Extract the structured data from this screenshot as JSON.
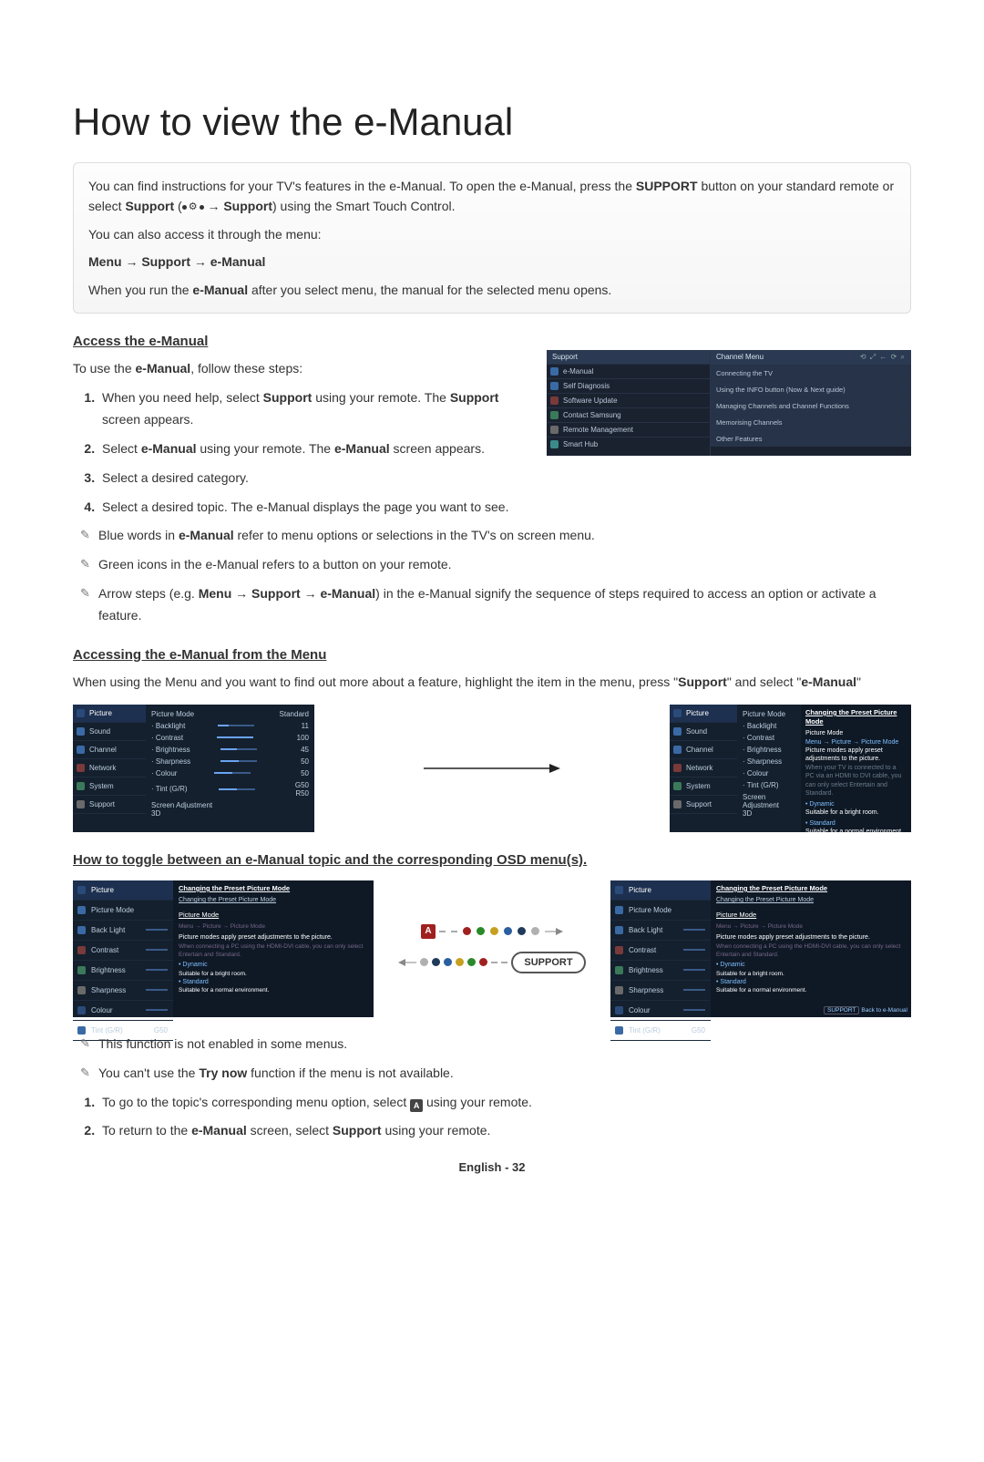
{
  "title": "How to view the e-Manual",
  "intro": {
    "p1a": "You can find instructions for your TV's features in the e-Manual. To open the e-Manual, press the ",
    "p1b": " button on your standard remote or select ",
    "p1c": " → Support",
    "p1d": ") using the Smart Touch Control.",
    "support_word": "SUPPORT",
    "support_word2": "Support",
    "p2": "You can also access it through the menu:",
    "menu_path": "Menu → Support → e-Manual",
    "p3a": "When you run the ",
    "p3b": " after you select menu, the manual for the selected menu opens.",
    "emanual_word": "e-Manual"
  },
  "section1": {
    "heading": "Access the e-Manual",
    "lead": "To use the ",
    "lead_bold": "e-Manual",
    "lead2": ", follow these steps:",
    "steps": [
      {
        "a": "When you need help, select ",
        "b": "Support",
        "c": " using your remote. The ",
        "d": "Support",
        "e": " screen appears."
      },
      {
        "a": "Select ",
        "b": "e-Manual",
        "c": " using your remote. The ",
        "d": "e-Manual",
        "e": " screen appears."
      },
      {
        "a": "Select a desired category."
      },
      {
        "a": "Select a desired topic. The e-Manual displays the page you want to see."
      }
    ],
    "notes": [
      {
        "a": "Blue words in ",
        "b": "e-Manual",
        "c": " refer to menu options or selections in the TV's on screen menu."
      },
      {
        "a": "Green icons in the e-Manual refers to a button on your remote."
      },
      {
        "a": "Arrow steps (e.g. ",
        "b": "Menu → Support → e-Manual",
        "c": ") in the e-Manual signify the sequence of steps required to access an option or activate a feature."
      }
    ]
  },
  "mini_support": {
    "head": "Support",
    "items": [
      "e-Manual",
      "Self Diagnosis",
      "Software Update",
      "Contact Samsung",
      "Remote Management",
      "Smart Hub"
    ],
    "right_head": "Channel Menu",
    "right_items": [
      "Connecting the TV",
      "Using the INFO button (Now & Next guide)",
      "Managing Channels and Channel Functions",
      "Memorising Channels",
      "Other Features"
    ]
  },
  "section2": {
    "heading": "Accessing the e-Manual from the Menu",
    "p1": "When using the Menu and you want to find out more about a feature, highlight the item in the menu, press \"",
    "p1b": "Support",
    "p1c": "\" and select \"",
    "p1d": "e-Manual",
    "p1e": "\""
  },
  "panel_side": [
    "Picture",
    "Sound",
    "Channel",
    "Network",
    "System",
    "Support"
  ],
  "panel_mid": {
    "head_l": "Picture Mode",
    "head_r": "Standard",
    "rows": [
      {
        "label": "· Backlight",
        "val": "11",
        "pct": 30
      },
      {
        "label": "· Contrast",
        "val": "100",
        "pct": 100
      },
      {
        "label": "· Brightness",
        "val": "45",
        "pct": 45
      },
      {
        "label": "· Sharpness",
        "val": "50",
        "pct": 50
      },
      {
        "label": "· Colour",
        "val": "50",
        "pct": 50
      },
      {
        "label": "· Tint (G/R)",
        "val": "G50      R50",
        "pct": 50
      }
    ],
    "foot1": "Screen Adjustment",
    "foot2": "3D"
  },
  "panel_right": {
    "title": "Changing the Preset Picture Mode",
    "sub": "Picture Mode",
    "path": "Menu → Picture → Picture Mode",
    "line1": "Picture modes apply preset adjustments to the picture.",
    "grey1": "When your TV is connected to a PC via an HDMI to DVI cable, you can only select Entertain and Standard.",
    "bul1": "• Dynamic",
    "bul1s": "Suitable for a bright room.",
    "bul2": "• Standard",
    "bul2s": "Suitable for a normal environment."
  },
  "section3": {
    "heading": "How to toggle between an e-Manual topic and the corresponding OSD menu(s)."
  },
  "t_side_items": [
    "Picture",
    "Picture Mode",
    "Back Light",
    "Contrast",
    "Brightness",
    "Sharpness",
    "Colour",
    "Tint (G/R)"
  ],
  "t_side_tint_val": "G50",
  "t_right": {
    "title": "Changing the Preset Picture Mode",
    "link": "Changing the Preset Picture Mode",
    "sub": "Picture Mode",
    "grey1": "Menu → Picture → Picture Mode",
    "line1": "Picture modes apply preset adjustments to the picture.",
    "grey2": "When connecting a PC using the HDMI-DVI cable, you can only select Entertain and Standard.",
    "bul1": "• Dynamic",
    "bul1s": "Suitable for a bright room.",
    "bul2": "• Standard",
    "bul2s": "Suitable for a normal environment.",
    "back": "Back to e-Manual"
  },
  "buttons": {
    "a": "A",
    "support": "SUPPORT"
  },
  "color_dots": [
    "#a02020",
    "#2a8a2a",
    "#c6a020",
    "#2a5fa0",
    "#1f3a5a",
    "#b0b0b0"
  ],
  "section4_notes": [
    "This function is not enabled in some menus.",
    "You can't use the Try now function if the menu is not available."
  ],
  "section4_note1_bold": "Try now",
  "section4_steps": [
    {
      "a": "To go to the topic's corresponding menu option, select ",
      "c": " using your remote."
    },
    {
      "a": "To return to the ",
      "b": "e-Manual",
      "c": " screen, select ",
      "d": "Support",
      "e": " using your remote."
    }
  ],
  "footer": "English - 32",
  "side_icon_colors": [
    "#3a6aa5",
    "#3a6aa5",
    "#7a3a3a",
    "#3a7a5a",
    "#6a6a6a",
    "#3a8a8a"
  ],
  "side_icon_colors2": [
    "#2a4a7a",
    "#3a6aa5",
    "#3a6aa5",
    "#7a3a3a",
    "#3a7a5a",
    "#6a6a6a"
  ]
}
